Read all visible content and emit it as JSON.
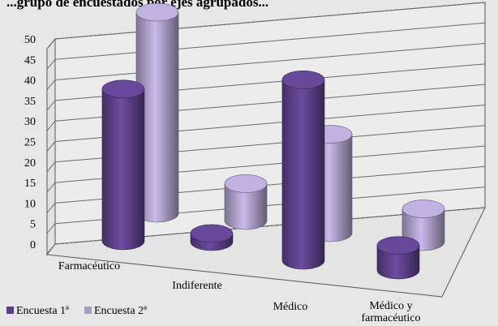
{
  "chart_data": {
    "type": "bar",
    "subtype": "3d-cylinder-clustered",
    "title": "...grupo de encuestados por ejes agrupados...",
    "categories": [
      "Farmacéutico",
      "Indiferente",
      "Médico",
      "Médico y farmacéutico"
    ],
    "series": [
      {
        "name": "Encuesta 1ª",
        "values": [
          37,
          2,
          44,
          6
        ],
        "color": "#5a3f86"
      },
      {
        "name": "Encuesta 2ª",
        "values": [
          49,
          9,
          24,
          8
        ],
        "color": "#a89bc4"
      }
    ],
    "ylim": [
      0,
      50
    ],
    "yticks": [
      0,
      5,
      10,
      15,
      20,
      25,
      30,
      35,
      40,
      45,
      50
    ],
    "grid": true,
    "legend_position": "bottom-left"
  }
}
